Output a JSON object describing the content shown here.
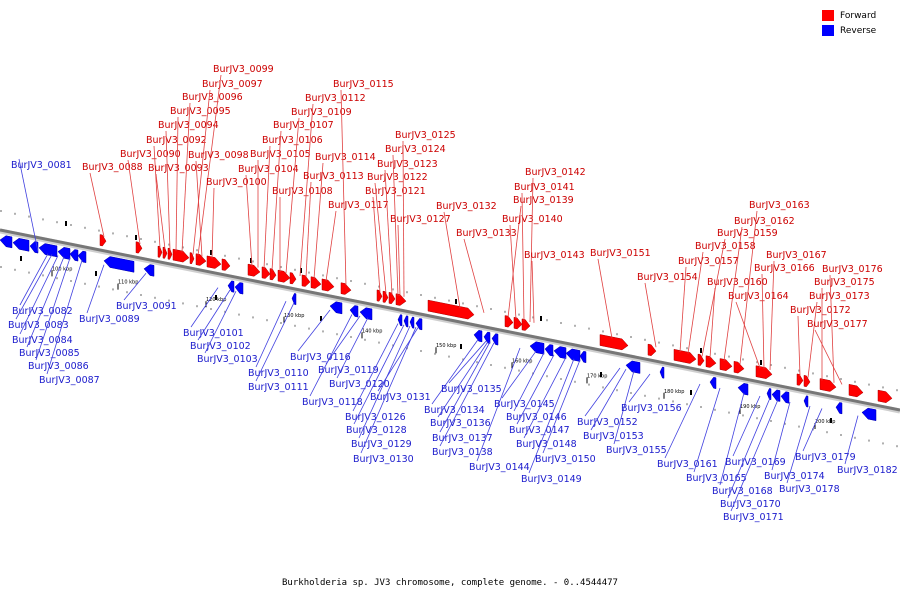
{
  "caption": "Burkholderia sp. JV3 chromosome, complete genome. - 0..4544477",
  "legend": [
    {
      "label": "Forward",
      "color": "#ff0000"
    },
    {
      "label": "Reverse",
      "color": "#0000ff"
    }
  ],
  "colors": {
    "forward": "#ff0000",
    "reverse": "#0000ff",
    "forward_label": "#cc0000",
    "reverse_label": "#1a1acc",
    "backbone": "#777777"
  },
  "ticks": [
    "100 kbp",
    "110 kbp",
    "120 kbp",
    "130 kbp",
    "140 kbp",
    "150 kbp",
    "160 kbp",
    "170 kbp",
    "180 kbp",
    "190 kbp",
    "200 kbp"
  ],
  "forward_genes": [
    "BurJV3_0088",
    "BurJV3_0090",
    "BurJV3_0092",
    "BurJV3_0093",
    "BurJV3_0094",
    "BurJV3_0095",
    "BurJV3_0096",
    "BurJV3_0097",
    "BurJV3_0099",
    "BurJV3_0098",
    "BurJV3_0100",
    "BurJV3_0104",
    "BurJV3_0105",
    "BurJV3_0106",
    "BurJV3_0107",
    "BurJV3_0108",
    "BurJV3_0109",
    "BurJV3_0112",
    "BurJV3_0113",
    "BurJV3_0114",
    "BurJV3_0115",
    "BurJV3_0117",
    "BurJV3_0121",
    "BurJV3_0122",
    "BurJV3_0123",
    "BurJV3_0124",
    "BurJV3_0125",
    "BurJV3_0127",
    "BurJV3_0132",
    "BurJV3_0133",
    "BurJV3_0139",
    "BurJV3_0140",
    "BurJV3_0141",
    "BurJV3_0142",
    "BurJV3_0143",
    "BurJV3_0151",
    "BurJV3_0154",
    "BurJV3_0157",
    "BurJV3_0158",
    "BurJV3_0159",
    "BurJV3_0160",
    "BurJV3_0162",
    "BurJV3_0163",
    "BurJV3_0164",
    "BurJV3_0166",
    "BurJV3_0167",
    "BurJV3_0172",
    "BurJV3_0173",
    "BurJV3_0175",
    "BurJV3_0176",
    "BurJV3_0177"
  ],
  "reverse_genes": [
    "BurJV3_0081",
    "BurJV3_0082",
    "BurJV3_0083",
    "BurJV3_0084",
    "BurJV3_0085",
    "BurJV3_0086",
    "BurJV3_0087",
    "BurJV3_0089",
    "BurJV3_0091",
    "BurJV3_0101",
    "BurJV3_0102",
    "BurJV3_0103",
    "BurJV3_0110",
    "BurJV3_0111",
    "BurJV3_0116",
    "BurJV3_0118",
    "BurJV3_0119",
    "BurJV3_0120",
    "BurJV3_0126",
    "BurJV3_0128",
    "BurJV3_0129",
    "BurJV3_0130",
    "BurJV3_0131",
    "BurJV3_0134",
    "BurJV3_0135",
    "BurJV3_0136",
    "BurJV3_0137",
    "BurJV3_0138",
    "BurJV3_0144",
    "BurJV3_0145",
    "BurJV3_0146",
    "BurJV3_0147",
    "BurJV3_0148",
    "BurJV3_0149",
    "BurJV3_0150",
    "BurJV3_0152",
    "BurJV3_0153",
    "BurJV3_0155",
    "BurJV3_0156",
    "BurJV3_0161",
    "BurJV3_0165",
    "BurJV3_0168",
    "BurJV3_0169",
    "BurJV3_0170",
    "BurJV3_0171",
    "BurJV3_0174",
    "BurJV3_0178",
    "BurJV3_0179",
    "BurJV3_0182"
  ]
}
